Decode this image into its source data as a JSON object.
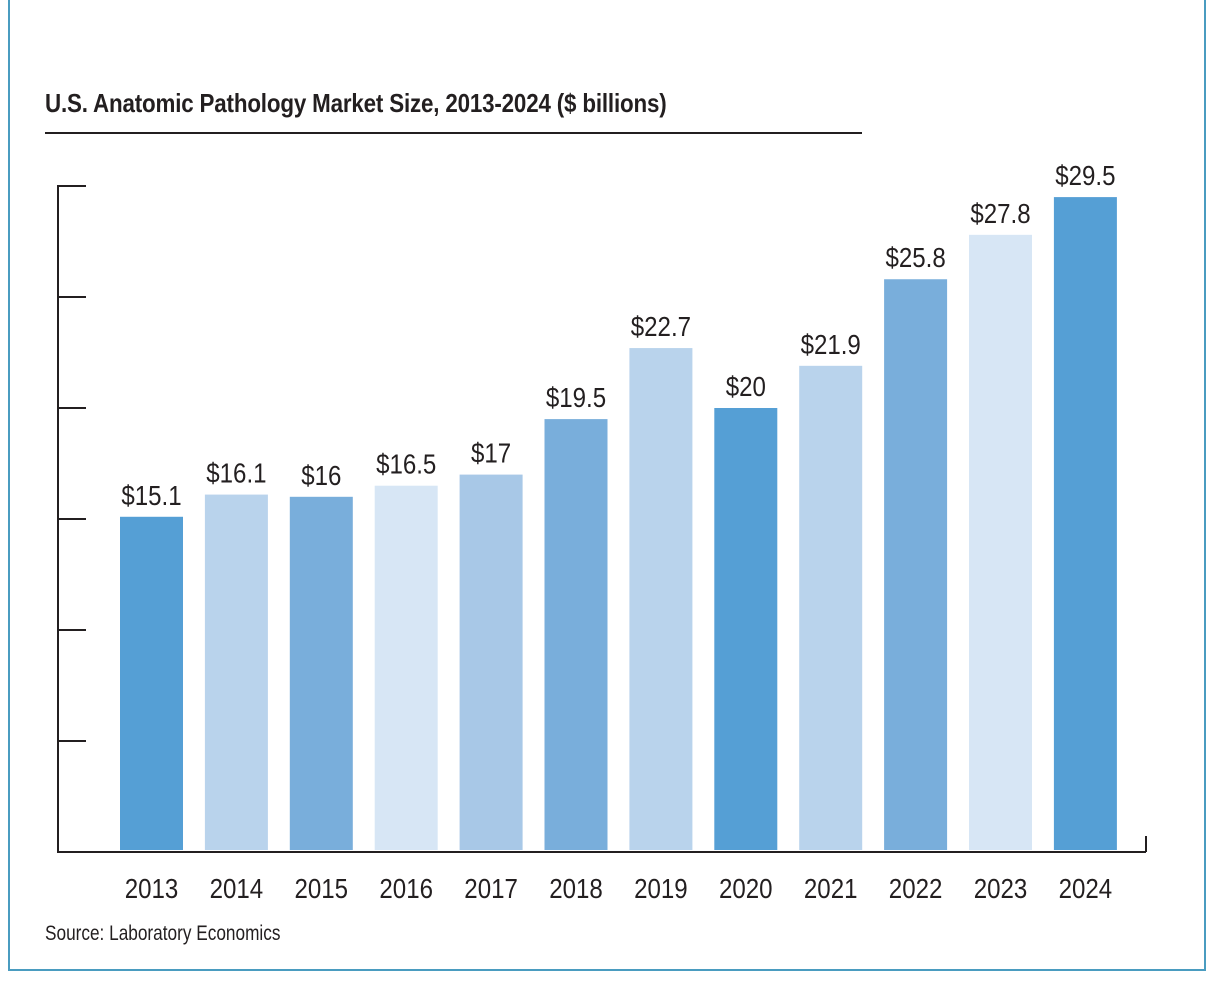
{
  "chart_data": {
    "type": "bar",
    "title": "U.S. Anatomic Pathology Market Size, 2013-2024 ($ billions)",
    "source": "Source: Laboratory Economics",
    "xlabel": "",
    "ylabel": "",
    "ylim": [
      0,
      30
    ],
    "yticks": [
      0,
      5,
      10,
      15,
      20,
      25,
      30
    ],
    "grid": false,
    "categories": [
      "2013",
      "2014",
      "2015",
      "2016",
      "2017",
      "2018",
      "2019",
      "2020",
      "2021",
      "2022",
      "2023",
      "2024"
    ],
    "values": [
      15.1,
      16.1,
      16,
      16.5,
      17,
      19.5,
      22.7,
      20,
      21.9,
      25.8,
      27.8,
      29.5
    ],
    "data_labels": [
      "$15.1",
      "$16.1",
      "$16",
      "$16.5",
      "$17",
      "$19.5",
      "$22.7",
      "$20",
      "$21.9",
      "$25.8",
      "$27.8",
      "$29.5"
    ],
    "bar_colors": [
      "#559fd5",
      "#b9d3ec",
      "#79aedb",
      "#d7e6f5",
      "#a8c8e7",
      "#79aedb",
      "#b9d3ec",
      "#559fd5",
      "#b9d3ec",
      "#79aedb",
      "#d7e6f5",
      "#559fd5"
    ]
  }
}
